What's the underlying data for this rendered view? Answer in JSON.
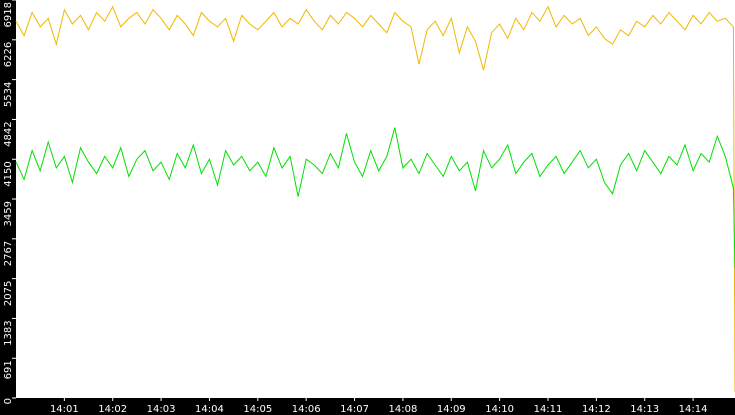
{
  "chart_data": {
    "type": "line",
    "xlim": [
      "14:00:00",
      "14:14:52"
    ],
    "xticks": [
      "14:01",
      "14:02",
      "14:03",
      "14:04",
      "14:05",
      "14:06",
      "14:07",
      "14:08",
      "14:09",
      "14:10",
      "14:11",
      "14:12",
      "14:13",
      "14:14"
    ],
    "ylim": [
      0,
      6918
    ],
    "yticks": [
      0,
      691,
      1383,
      2075,
      2767,
      3459,
      4150,
      4842,
      5534,
      6226,
      6918
    ],
    "x": [
      "14:00:00",
      "14:00:10",
      "14:00:20",
      "14:00:30",
      "14:00:40",
      "14:00:50",
      "14:01:00",
      "14:01:10",
      "14:01:20",
      "14:01:30",
      "14:01:40",
      "14:01:50",
      "14:02:00",
      "14:02:10",
      "14:02:20",
      "14:02:30",
      "14:02:40",
      "14:02:50",
      "14:03:00",
      "14:03:10",
      "14:03:20",
      "14:03:30",
      "14:03:40",
      "14:03:50",
      "14:04:00",
      "14:04:10",
      "14:04:20",
      "14:04:30",
      "14:04:40",
      "14:04:50",
      "14:05:00",
      "14:05:10",
      "14:05:20",
      "14:05:30",
      "14:05:40",
      "14:05:50",
      "14:06:00",
      "14:06:10",
      "14:06:20",
      "14:06:30",
      "14:06:40",
      "14:06:50",
      "14:07:00",
      "14:07:10",
      "14:07:20",
      "14:07:30",
      "14:07:40",
      "14:07:50",
      "14:08:00",
      "14:08:10",
      "14:08:20",
      "14:08:30",
      "14:08:40",
      "14:08:50",
      "14:09:00",
      "14:09:10",
      "14:09:20",
      "14:09:30",
      "14:09:40",
      "14:09:50",
      "14:10:00",
      "14:10:10",
      "14:10:20",
      "14:10:30",
      "14:10:40",
      "14:10:50",
      "14:11:00",
      "14:11:10",
      "14:11:20",
      "14:11:30",
      "14:11:40",
      "14:11:50",
      "14:12:00",
      "14:12:10",
      "14:12:20",
      "14:12:30",
      "14:12:40",
      "14:12:50",
      "14:13:00",
      "14:13:10",
      "14:13:20",
      "14:13:30",
      "14:13:40",
      "14:13:50",
      "14:14:00",
      "14:14:10",
      "14:14:20",
      "14:14:30",
      "14:14:40",
      "14:14:50",
      "14:14:52"
    ],
    "series": [
      {
        "color": "#f0b800",
        "values": [
          6550,
          6300,
          6700,
          6450,
          6600,
          6150,
          6750,
          6500,
          6650,
          6400,
          6700,
          6550,
          6800,
          6450,
          6600,
          6700,
          6500,
          6750,
          6600,
          6400,
          6650,
          6500,
          6300,
          6700,
          6550,
          6450,
          6600,
          6200,
          6650,
          6500,
          6400,
          6550,
          6700,
          6450,
          6600,
          6500,
          6750,
          6550,
          6400,
          6650,
          6500,
          6700,
          6600,
          6450,
          6650,
          6500,
          6350,
          6700,
          6550,
          6450,
          5800,
          6400,
          6550,
          6300,
          6600,
          6000,
          6450,
          6200,
          5700,
          6350,
          6500,
          6250,
          6600,
          6400,
          6700,
          6550,
          6800,
          6450,
          6650,
          6500,
          6600,
          6300,
          6450,
          6250,
          6150,
          6400,
          6300,
          6550,
          6450,
          6650,
          6500,
          6700,
          6550,
          6400,
          6650,
          6500,
          6700,
          6550,
          6600,
          6450,
          100
        ]
      },
      {
        "color": "#00e000",
        "values": [
          4100,
          3800,
          4300,
          3950,
          4450,
          4000,
          4200,
          3750,
          4350,
          4100,
          3900,
          4200,
          4000,
          4350,
          3850,
          4150,
          4300,
          3950,
          4100,
          3800,
          4250,
          4000,
          4400,
          3900,
          4150,
          3700,
          4300,
          4050,
          4200,
          3950,
          4100,
          3850,
          4350,
          4000,
          4200,
          3500,
          4150,
          4050,
          3900,
          4250,
          4000,
          4600,
          4100,
          3850,
          4300,
          3950,
          4200,
          4700,
          4000,
          4150,
          3900,
          4250,
          4050,
          3850,
          4200,
          3950,
          4100,
          3600,
          4300,
          4000,
          4150,
          4400,
          3900,
          4100,
          4250,
          3850,
          4050,
          4200,
          3900,
          4100,
          4300,
          4000,
          4150,
          3750,
          3550,
          4050,
          4250,
          3950,
          4300,
          4100,
          3900,
          4200,
          4050,
          4400,
          3950,
          4250,
          4100,
          4550,
          4200,
          3650,
          2250
        ]
      }
    ]
  }
}
